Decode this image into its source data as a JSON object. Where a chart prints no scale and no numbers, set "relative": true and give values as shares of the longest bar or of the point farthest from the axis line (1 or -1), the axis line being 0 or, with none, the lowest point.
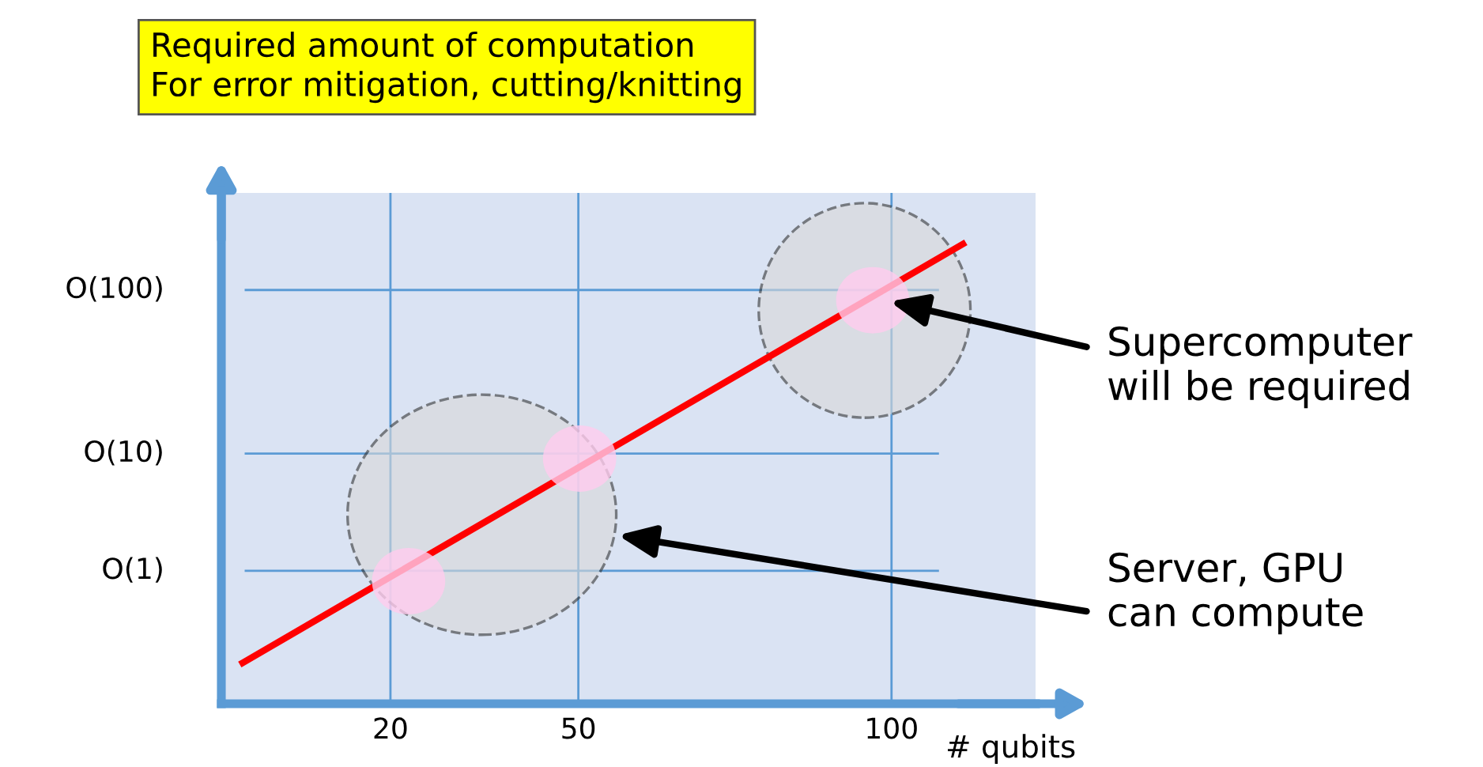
{
  "chart_data": {
    "type": "line",
    "ylabel": "Required amount of computation\nFor error mitigation, cutting/knitting",
    "xlabel": "# qubits",
    "relative": true,
    "x": [
      -3.6,
      111.4
    ],
    "series": [
      {
        "color": "#ff0000",
        "values": [
          0.089,
          1.0
        ]
      }
    ],
    "xlim": [
      -7,
      123
    ],
    "xticks": [
      20,
      50,
      100
    ],
    "ref_lines": [
      {
        "axis": "y",
        "value": 0.289,
        "label": "O(1)",
        "color": "#5b9bd5"
      },
      {
        "axis": "y",
        "value": 0.544,
        "label": "O(10)",
        "color": "#5b9bd5"
      },
      {
        "axis": "y",
        "value": 0.9,
        "label": "O(100)",
        "color": "#5b9bd5"
      }
    ],
    "grid": "x",
    "marker": "none",
    "line_style": "solid",
    "legend": false,
    "annotations": [
      "Supercomputer\nwill be required",
      "Server, GPU\ncan compute"
    ]
  }
}
